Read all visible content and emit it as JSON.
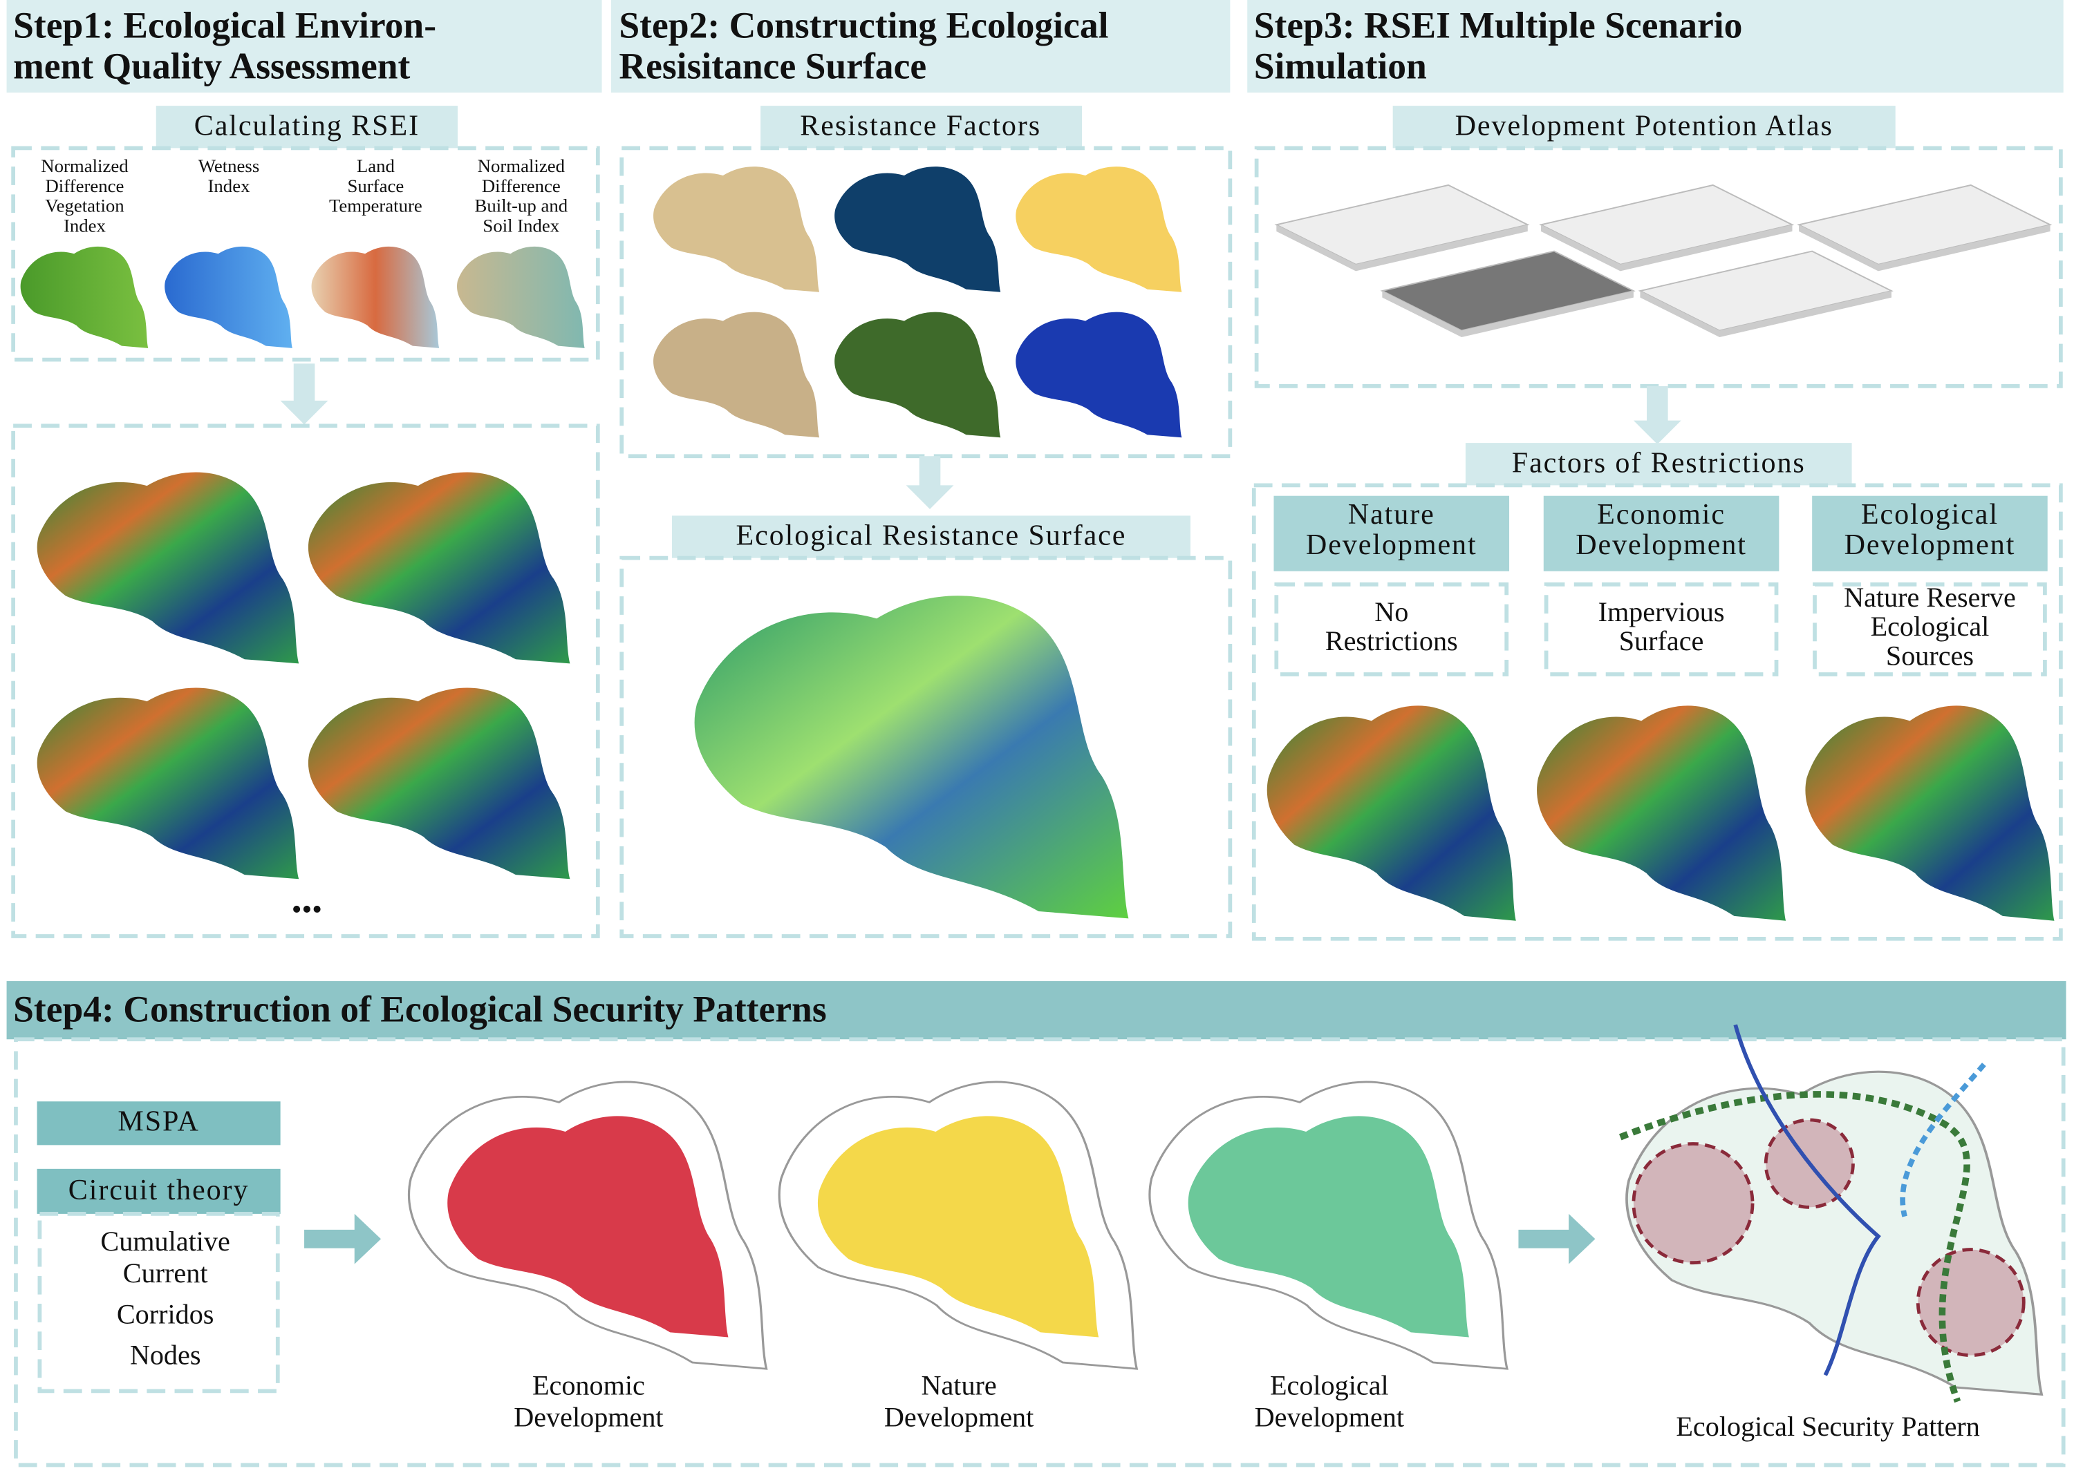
{
  "step1": {
    "title_lines": [
      "Step1: Ecological Environ-",
      "ment Quality Assessment"
    ],
    "section": "Calculating RSEI",
    "indices": [
      [
        "Normalized",
        "Difference",
        "Vegetation",
        "Index"
      ],
      [
        "Wetness",
        "Index"
      ],
      [
        "Land",
        "Surface",
        "Temperature"
      ],
      [
        "Normalized",
        "Difference",
        "Built-up and",
        "Soil Index"
      ]
    ],
    "more": "•••"
  },
  "step2": {
    "title_lines": [
      "Step2: Constructing Ecological",
      "Resisitance Surface"
    ],
    "factors": "Resistance Factors",
    "surface": "Ecological Resistance Surface"
  },
  "step3": {
    "title_lines": [
      "Step3: RSEI Multiple Scenario",
      "Simulation"
    ],
    "atlas": "Development Potention Atlas",
    "restrictions": "Factors of Restrictions",
    "scenarios": [
      {
        "name": [
          "Nature",
          "Development"
        ],
        "factor": [
          "No",
          "Restrictions"
        ]
      },
      {
        "name": [
          "Economic",
          "Development"
        ],
        "factor": [
          "Impervious",
          "Surface"
        ]
      },
      {
        "name": [
          "Ecological",
          "Development"
        ],
        "factor": [
          "Nature Reserve",
          "Ecological",
          "Sources"
        ]
      }
    ]
  },
  "step4": {
    "title": "Step4: Construction of Ecological Security Patterns",
    "mspa": "MSPA",
    "circuit": "Circuit theory",
    "circuit_items": [
      "Cumulative",
      "Current",
      "Corridos",
      "Nodes"
    ],
    "maps": [
      [
        "Economic",
        "Development"
      ],
      [
        "Nature",
        "Development"
      ],
      [
        "Ecological",
        "Development"
      ]
    ],
    "pattern": "Ecological Security Pattern"
  }
}
